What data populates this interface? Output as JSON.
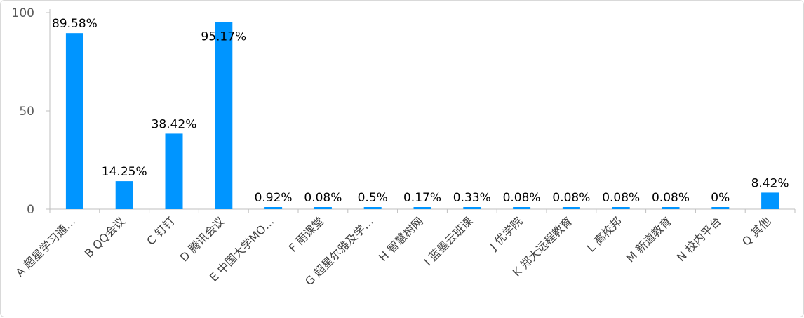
{
  "chart_data": {
    "type": "bar",
    "title": "",
    "xlabel": "",
    "ylabel": "",
    "ylim": [
      0,
      100
    ],
    "yticks": [
      0,
      50,
      100
    ],
    "grid": false,
    "legend": "none",
    "bar_color": "#0095FF",
    "categories": [
      "A 超星学习通…",
      "B QQ会议",
      "C 钉钉",
      "D 腾讯会议",
      "E 中国大学MO…",
      "F 雨课堂",
      "G 超星尔雅及学…",
      "H 智慧树网",
      "I 蓝墨云班课",
      "J 优学院",
      "K 郑大远程教育",
      "L 高校邦",
      "M 新道教育",
      "N 校内平台",
      "Q 其他"
    ],
    "values": [
      89.58,
      14.25,
      38.42,
      95.17,
      0.92,
      0.08,
      0.5,
      0.17,
      0.33,
      0.08,
      0.08,
      0.08,
      0.08,
      0,
      8.42
    ],
    "data_labels": [
      "89.58%",
      "14.25%",
      "38.42%",
      "95.17%",
      "0.92%",
      "0.08%",
      "0.5%",
      "0.17%",
      "0.33%",
      "0.08%",
      "0.08%",
      "0.08%",
      "0.08%",
      "0%",
      "8.42%"
    ]
  }
}
